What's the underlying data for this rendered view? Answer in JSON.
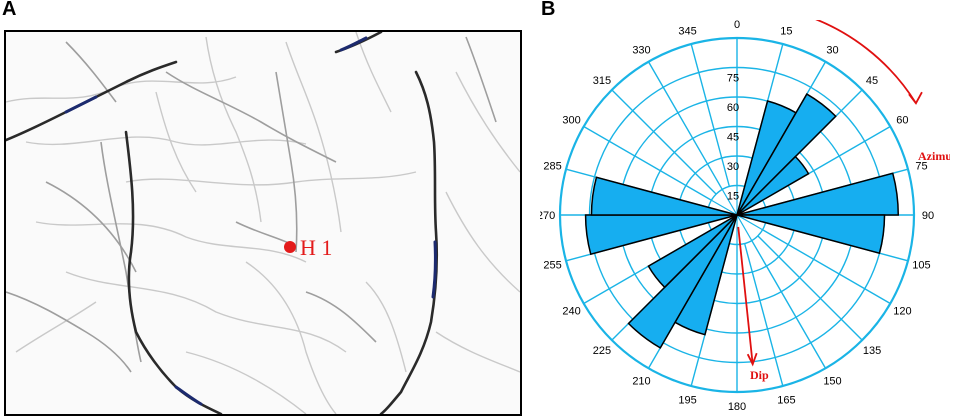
{
  "panel_a": {
    "label": "A",
    "well_label": "H 1",
    "well_color": "#e31b1b"
  },
  "panel_b": {
    "label": "B",
    "azimuth_label": "Azimuth",
    "dip_label": "Dip",
    "ring_labels": [
      "15",
      "30",
      "45",
      "60",
      "75"
    ],
    "angle_labels": [
      "0",
      "15",
      "30",
      "45",
      "60",
      "75",
      "90",
      "105",
      "120",
      "135",
      "150",
      "165",
      "180",
      "195",
      "210",
      "225",
      "240",
      "255",
      "270",
      "285",
      "300",
      "315",
      "330",
      "345"
    ],
    "colors": {
      "grid": "#1ab4e6",
      "fill": "#16aef0",
      "arrow": "#e01010"
    }
  },
  "chart_data": {
    "type": "rose",
    "title": "",
    "xlabel": "Azimuth",
    "ylabel": "Dip",
    "radial_ticks": [
      15,
      30,
      45,
      60,
      75
    ],
    "radial_max": 90,
    "petals": [
      {
        "azimuth_start": 15,
        "azimuth_end": 30,
        "value": 60
      },
      {
        "azimuth_start": 30,
        "azimuth_end": 45,
        "value": 71
      },
      {
        "azimuth_start": 45,
        "azimuth_end": 60,
        "value": 42
      },
      {
        "azimuth_start": 75,
        "azimuth_end": 90,
        "value": 82
      },
      {
        "azimuth_start": 90,
        "azimuth_end": 105,
        "value": 75
      },
      {
        "azimuth_start": 195,
        "azimuth_end": 210,
        "value": 63
      },
      {
        "azimuth_start": 210,
        "azimuth_end": 225,
        "value": 78
      },
      {
        "azimuth_start": 225,
        "azimuth_end": 240,
        "value": 52
      },
      {
        "azimuth_start": 255,
        "azimuth_end": 270,
        "value": 77
      },
      {
        "azimuth_start": 270,
        "azimuth_end": 285,
        "value": 74
      }
    ]
  }
}
